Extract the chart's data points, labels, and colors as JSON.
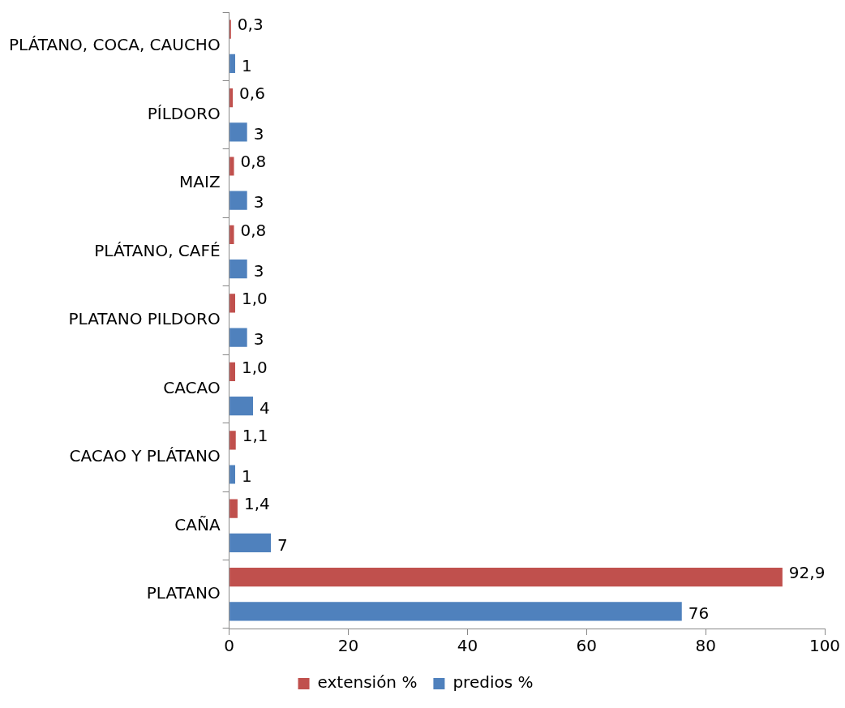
{
  "chart_data": {
    "type": "bar",
    "orientation": "horizontal",
    "categories": [
      "PLÁTANO, COCA, CAUCHO",
      "PÍLDORO",
      "MAIZ",
      "PLÁTANO, CAFÉ",
      "PLATANO PILDORO",
      "CACAO",
      "CACAO Y PLÁTANO",
      "CAÑA",
      "PLATANO"
    ],
    "series": [
      {
        "name": "extensión %",
        "color": "#c0504d",
        "values": [
          0.3,
          0.6,
          0.8,
          0.8,
          1.0,
          1.0,
          1.1,
          1.4,
          92.9
        ],
        "value_labels": [
          "0,3",
          "0,6",
          "0,8",
          "0,8",
          "1,0",
          "1,0",
          "1,1",
          "1,4",
          "92,9"
        ]
      },
      {
        "name": "predios %",
        "color": "#4f81bd",
        "values": [
          1,
          3,
          3,
          3,
          3,
          4,
          1,
          7,
          76
        ],
        "value_labels": [
          "1",
          "3",
          "3",
          "3",
          "3",
          "4",
          "1",
          "7",
          "76"
        ]
      }
    ],
    "xlim": [
      0,
      100
    ],
    "xticks": [
      0,
      20,
      40,
      60,
      80,
      100
    ],
    "grid": false,
    "legend": "bottom"
  }
}
